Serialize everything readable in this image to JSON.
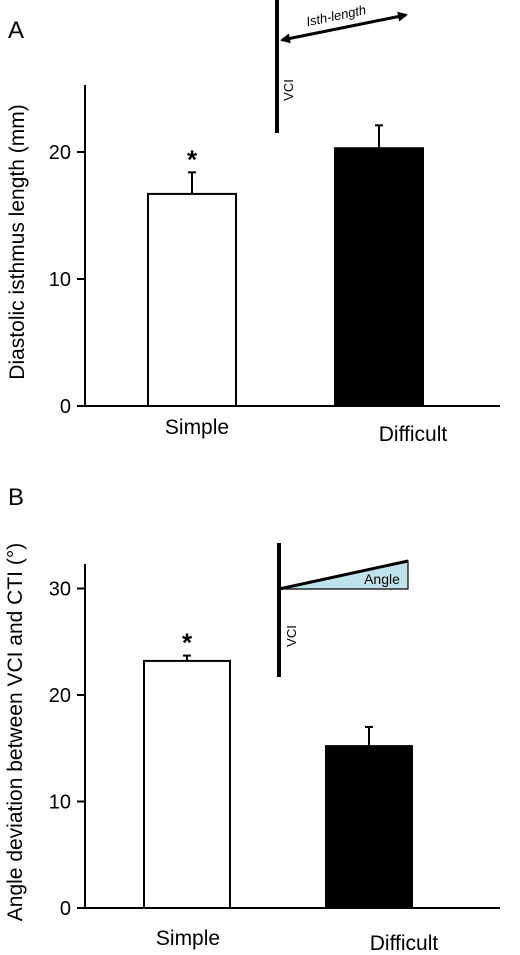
{
  "colors": {
    "bar_simple": "#ffffff",
    "bar_difficult": "#000000",
    "angle_fill": "#bfe3ea",
    "ink": "#000000"
  },
  "chart_data": [
    {
      "panel": "A",
      "type": "bar",
      "categories": [
        "Simple",
        "Difficult"
      ],
      "values": [
        16.7,
        20.3
      ],
      "errors": [
        1.7,
        1.8
      ],
      "significance": [
        "*",
        ""
      ],
      "title": "",
      "xlabel": "",
      "ylabel": "Diastolic isthmus length (mm)",
      "ylim": [
        0,
        25
      ],
      "yticks": [
        0,
        10,
        20
      ],
      "grid": false,
      "inset": {
        "vertical_label": "VCI",
        "arrow_label": "Isth-length"
      }
    },
    {
      "panel": "B",
      "type": "bar",
      "categories": [
        "Simple",
        "Difficult"
      ],
      "values": [
        23.2,
        15.2
      ],
      "errors": [
        0.5,
        1.8
      ],
      "significance": [
        "*",
        ""
      ],
      "title": "",
      "xlabel": "",
      "ylabel": "Angle deviation between VCI and CTI (°)",
      "ylim": [
        0,
        34
      ],
      "yticks": [
        0,
        10,
        20,
        30
      ],
      "grid": false,
      "inset": {
        "vertical_label": "VCI",
        "wedge_label": "Angle"
      }
    }
  ]
}
